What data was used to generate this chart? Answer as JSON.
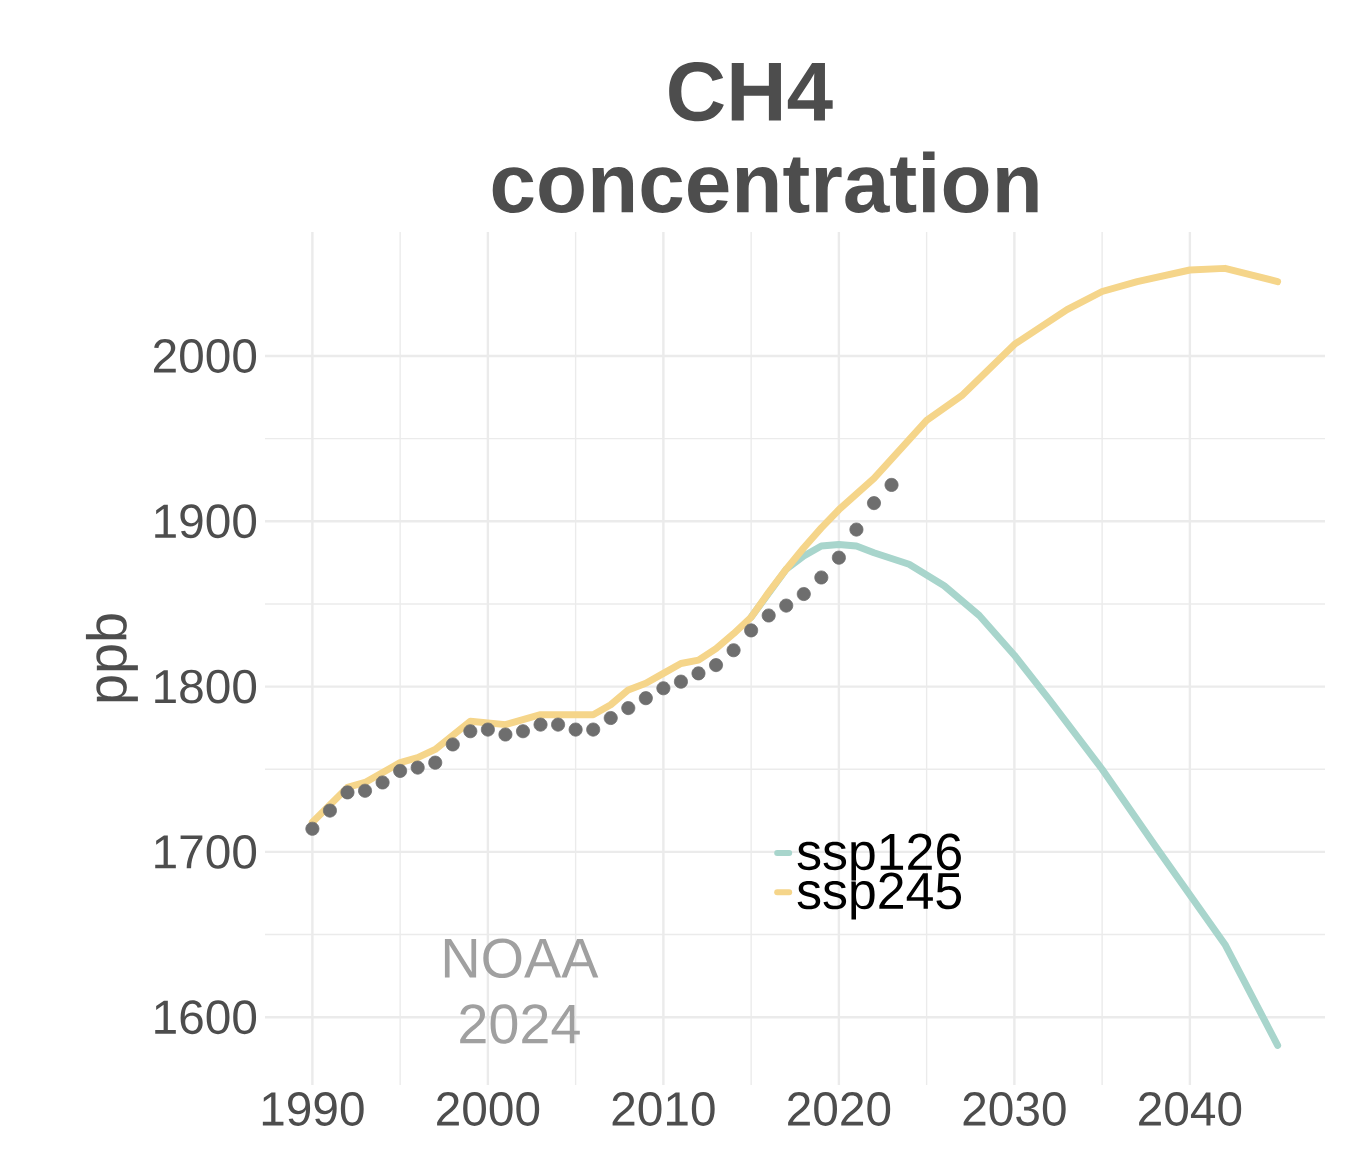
{
  "chart_data": {
    "type": "line",
    "title": "CH4 concentration",
    "ylabel": "ppb",
    "xlim": [
      1987.3,
      2047.7
    ],
    "ylim": [
      1559,
      2075
    ],
    "xticks": [
      1990,
      2000,
      2010,
      2020,
      2030,
      2040
    ],
    "yticks": [
      1600,
      1700,
      1800,
      1900,
      2000
    ],
    "grid": true,
    "legend": "bottom",
    "line_style": "solid",
    "annotations": [
      "NOAA 2024"
    ],
    "series": [
      {
        "name": "ssp126",
        "color": "#a8d5cc",
        "x": [
          2015,
          2016,
          2017,
          2018,
          2019,
          2020,
          2021,
          2022,
          2024,
          2026,
          2028,
          2030,
          2032,
          2035,
          2038,
          2040,
          2042,
          2045
        ],
        "values": [
          1842,
          null,
          1871,
          1879,
          1885,
          1886,
          1885,
          1881,
          1874,
          1861,
          1843,
          1819,
          1792,
          1750,
          1704,
          1674,
          1644,
          1583
        ]
      },
      {
        "name": "ssp245",
        "color": "#f5d58a",
        "x": [
          1990,
          1992,
          1993,
          1995,
          1996,
          1997,
          1999,
          2001,
          2003,
          2005,
          2006,
          2007,
          2008,
          2009,
          2010,
          2011,
          2012,
          2013,
          2014,
          2015,
          2016,
          2017,
          2018,
          2019,
          2020,
          2022,
          2025,
          2027,
          2030,
          2033,
          2035,
          2037,
          2040,
          2042,
          2045
        ],
        "values": [
          1718,
          1739,
          1742,
          1754,
          1757,
          1762,
          1779,
          1777,
          1783,
          1783,
          1783,
          1789,
          1798,
          1802,
          1808,
          1814,
          1816,
          1823,
          1832,
          1842,
          1857,
          1871,
          1884,
          1896,
          1907,
          1926,
          1961,
          1976,
          2007,
          2028,
          2039,
          2045,
          2052,
          2053,
          2045
        ]
      },
      {
        "type": "scatter",
        "marker": "circle",
        "color": "#6e6e6e",
        "x": [
          1990,
          1991,
          1992,
          1993,
          1994,
          1995,
          1996,
          1997,
          1998,
          1999,
          2000,
          2001,
          2002,
          2003,
          2004,
          2005,
          2006,
          2007,
          2008,
          2009,
          2010,
          2011,
          2012,
          2013,
          2014,
          2015,
          2016,
          2017,
          2018,
          2019,
          2020,
          2021,
          2022,
          2023
        ],
        "values": [
          1714,
          1725,
          1736,
          1737,
          1742,
          1749,
          1751,
          1754,
          1765,
          1773,
          1774,
          1771,
          1773,
          1777,
          1777,
          1774,
          1774,
          1781,
          1787,
          1793,
          1799,
          1803,
          1808,
          1813,
          1822,
          1834,
          1843,
          1849,
          1856,
          1866,
          1878,
          1895,
          1911,
          1922
        ]
      }
    ]
  }
}
